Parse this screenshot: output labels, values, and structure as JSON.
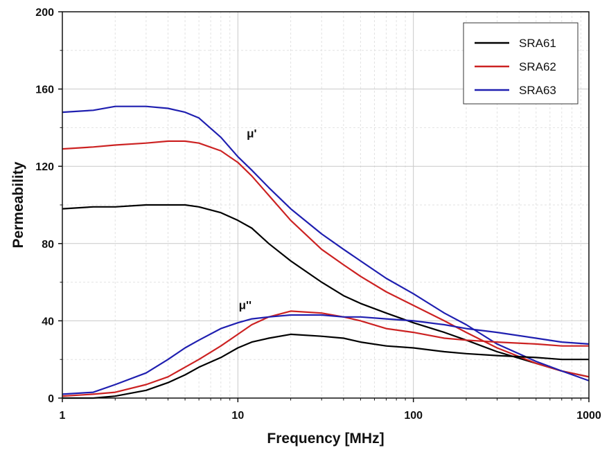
{
  "chart_data": {
    "type": "line",
    "title": "",
    "xlabel": "Frequency [MHz]",
    "ylabel": "Permeability",
    "xscale": "log",
    "xlim": [
      1,
      1000
    ],
    "ylim": [
      0,
      200
    ],
    "x_ticks": [
      1,
      10,
      100,
      1000
    ],
    "x_tick_labels": [
      "1",
      "10",
      "100",
      "1000"
    ],
    "y_ticks": [
      0,
      40,
      80,
      120,
      160,
      200
    ],
    "y_tick_labels": [
      "0",
      "40",
      "80",
      "120",
      "160",
      "200"
    ],
    "grid": true,
    "legend_position": "top-right",
    "legend": [
      {
        "name": "SRA61",
        "color": "#000000"
      },
      {
        "name": "SRA62",
        "color": "#cc2222"
      },
      {
        "name": "SRA63",
        "color": "#1f1fb0"
      }
    ],
    "annotations": [
      {
        "text": "μ'",
        "x": 12,
        "y": 135
      },
      {
        "text": "μ''",
        "x": 11,
        "y": 46
      }
    ],
    "series": [
      {
        "name": "SRA61",
        "component": "μ'",
        "color": "#000000",
        "x": [
          1,
          1.5,
          2,
          3,
          4,
          5,
          6,
          8,
          10,
          12,
          15,
          20,
          30,
          40,
          50,
          70,
          100,
          150,
          200,
          300,
          500,
          700,
          1000
        ],
        "y": [
          98,
          99,
          99,
          100,
          100,
          100,
          99,
          96,
          92,
          88,
          80,
          71,
          60,
          53,
          49,
          44,
          39,
          34,
          30,
          24,
          18,
          14,
          11
        ]
      },
      {
        "name": "SRA62",
        "component": "μ'",
        "color": "#cc2222",
        "x": [
          1,
          1.5,
          2,
          3,
          4,
          5,
          6,
          8,
          10,
          12,
          15,
          20,
          30,
          40,
          50,
          70,
          100,
          150,
          200,
          300,
          500,
          700,
          1000
        ],
        "y": [
          129,
          130,
          131,
          132,
          133,
          133,
          132,
          128,
          122,
          115,
          105,
          92,
          77,
          69,
          63,
          55,
          48,
          40,
          34,
          26,
          18,
          14,
          11
        ]
      },
      {
        "name": "SRA63",
        "component": "μ'",
        "color": "#1f1fb0",
        "x": [
          1,
          1.5,
          2,
          3,
          4,
          5,
          6,
          8,
          10,
          12,
          15,
          20,
          30,
          40,
          50,
          70,
          100,
          150,
          200,
          300,
          500,
          700,
          1000
        ],
        "y": [
          148,
          149,
          151,
          151,
          150,
          148,
          145,
          135,
          125,
          118,
          109,
          98,
          85,
          77,
          71,
          62,
          54,
          44,
          38,
          28,
          19,
          14,
          9
        ]
      },
      {
        "name": "SRA61",
        "component": "μ''",
        "color": "#000000",
        "x": [
          1,
          1.5,
          2,
          3,
          4,
          5,
          6,
          8,
          10,
          12,
          15,
          20,
          30,
          40,
          50,
          70,
          100,
          150,
          200,
          300,
          500,
          700,
          1000
        ],
        "y": [
          0,
          0,
          1,
          4,
          8,
          12,
          16,
          21,
          26,
          29,
          31,
          33,
          32,
          31,
          29,
          27,
          26,
          24,
          23,
          22,
          21,
          20,
          20
        ]
      },
      {
        "name": "SRA62",
        "component": "μ''",
        "color": "#cc2222",
        "x": [
          1,
          1.5,
          2,
          3,
          4,
          5,
          6,
          8,
          10,
          12,
          15,
          20,
          30,
          40,
          50,
          70,
          100,
          150,
          200,
          300,
          500,
          700,
          1000
        ],
        "y": [
          1,
          2,
          3,
          7,
          11,
          16,
          20,
          27,
          33,
          38,
          42,
          45,
          44,
          42,
          40,
          36,
          34,
          31,
          30,
          29,
          28,
          27,
          27
        ]
      },
      {
        "name": "SRA63",
        "component": "μ''",
        "color": "#1f1fb0",
        "x": [
          1,
          1.5,
          2,
          3,
          4,
          5,
          6,
          8,
          10,
          12,
          15,
          20,
          30,
          40,
          50,
          70,
          100,
          150,
          200,
          300,
          500,
          700,
          1000
        ],
        "y": [
          2,
          3,
          7,
          13,
          20,
          26,
          30,
          36,
          39,
          41,
          42,
          43,
          43,
          42,
          42,
          41,
          40,
          38,
          36,
          34,
          31,
          29,
          28
        ]
      }
    ]
  }
}
